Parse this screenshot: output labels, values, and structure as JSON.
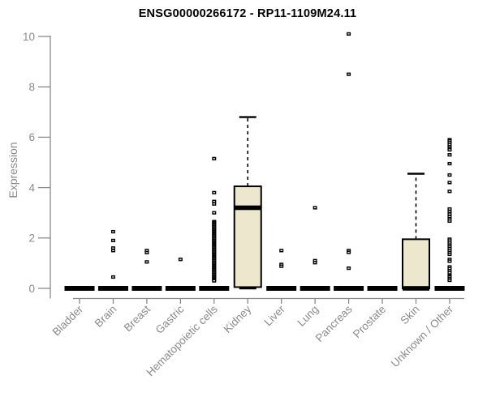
{
  "title": "ENSG00000266172 - RP11-1109M24.11",
  "colors": {
    "box_fill": "#EDE7CE",
    "box_stroke": "#000000",
    "axis": "#8a8a8a",
    "tick_label": "#8a8a8a",
    "background": "#ffffff"
  },
  "chart_data": {
    "type": "boxplot",
    "title": "ENSG00000266172 - RP11-1109M24.11",
    "xlabel": "",
    "ylabel": "Expression",
    "ylim": [
      0,
      10
    ],
    "yticks": [
      0,
      2,
      4,
      6,
      8,
      10
    ],
    "grid": false,
    "legend": "none",
    "categories": [
      "Bladder",
      "Brain",
      "Breast",
      "Gastric",
      "Hematopoietic cells",
      "Kidney",
      "Liver",
      "Lung",
      "Pancreas",
      "Prostate",
      "Skin",
      "Unknown / Other"
    ],
    "series": [
      {
        "category": "Bladder",
        "whisker_low": 0,
        "q1": 0,
        "median": 0,
        "q3": 0,
        "whisker_high": 0,
        "outliers": []
      },
      {
        "category": "Brain",
        "whisker_low": 0,
        "q1": 0,
        "median": 0,
        "q3": 0,
        "whisker_high": 0,
        "outliers": [
          2.25,
          1.9,
          1.6,
          1.5,
          0.45
        ]
      },
      {
        "category": "Breast",
        "whisker_low": 0,
        "q1": 0,
        "median": 0,
        "q3": 0,
        "whisker_high": 0,
        "outliers": [
          1.5,
          1.42,
          1.05
        ]
      },
      {
        "category": "Gastric",
        "whisker_low": 0,
        "q1": 0,
        "median": 0,
        "q3": 0,
        "whisker_high": 0,
        "outliers": [
          1.15
        ]
      },
      {
        "category": "Hematopoietic cells",
        "whisker_low": 0,
        "q1": 0,
        "median": 0,
        "q3": 0,
        "whisker_high": 0,
        "outliers": [
          5.15,
          3.8,
          3.45,
          3.35,
          3.0,
          2.65,
          2.6,
          2.55,
          2.5,
          2.45,
          2.4,
          2.35,
          2.3,
          2.25,
          2.2,
          2.15,
          2.1,
          2.05,
          2.0,
          1.95,
          1.9,
          1.85,
          1.8,
          1.75,
          1.7,
          1.65,
          1.6,
          1.55,
          1.5,
          1.45,
          1.4,
          1.35,
          1.3,
          1.25,
          1.2,
          1.15,
          1.1,
          1.05,
          1.0,
          0.95,
          0.9,
          0.85,
          0.8,
          0.75,
          0.7,
          0.65,
          0.6,
          0.55,
          0.5,
          0.45,
          0.4,
          0.35,
          0.3
        ]
      },
      {
        "category": "Kidney",
        "whisker_low": 0,
        "q1": 0.05,
        "median": 3.2,
        "q3": 4.05,
        "whisker_high": 6.8,
        "outliers": []
      },
      {
        "category": "Liver",
        "whisker_low": 0,
        "q1": 0,
        "median": 0,
        "q3": 0,
        "whisker_high": 0,
        "outliers": [
          1.5,
          0.95,
          0.88
        ]
      },
      {
        "category": "Lung",
        "whisker_low": 0,
        "q1": 0,
        "median": 0,
        "q3": 0,
        "whisker_high": 0,
        "outliers": [
          3.2,
          1.1,
          1.02
        ]
      },
      {
        "category": "Pancreas",
        "whisker_low": 0,
        "q1": 0,
        "median": 0,
        "q3": 0,
        "whisker_high": 0,
        "outliers": [
          10.1,
          8.5,
          1.5,
          1.43,
          0.8
        ]
      },
      {
        "category": "Prostate",
        "whisker_low": 0,
        "q1": 0,
        "median": 0,
        "q3": 0,
        "whisker_high": 0,
        "outliers": []
      },
      {
        "category": "Skin",
        "whisker_low": 0,
        "q1": 0,
        "median": 0,
        "q3": 1.95,
        "whisker_high": 4.55,
        "outliers": []
      },
      {
        "category": "Unknown / Other",
        "whisker_low": 0,
        "q1": 0,
        "median": 0,
        "q3": 0,
        "whisker_high": 0,
        "outliers": [
          5.9,
          5.85,
          5.78,
          5.7,
          5.62,
          5.55,
          5.5,
          5.3,
          4.95,
          4.5,
          4.2,
          3.85,
          3.15,
          3.05,
          2.95,
          2.85,
          2.75,
          2.67,
          1.95,
          1.88,
          1.8,
          1.72,
          1.65,
          1.58,
          1.5,
          1.42,
          1.35,
          1.15,
          1.08,
          0.85,
          0.78,
          0.7,
          0.62,
          0.5,
          0.45,
          0.38,
          0.32
        ]
      }
    ]
  }
}
